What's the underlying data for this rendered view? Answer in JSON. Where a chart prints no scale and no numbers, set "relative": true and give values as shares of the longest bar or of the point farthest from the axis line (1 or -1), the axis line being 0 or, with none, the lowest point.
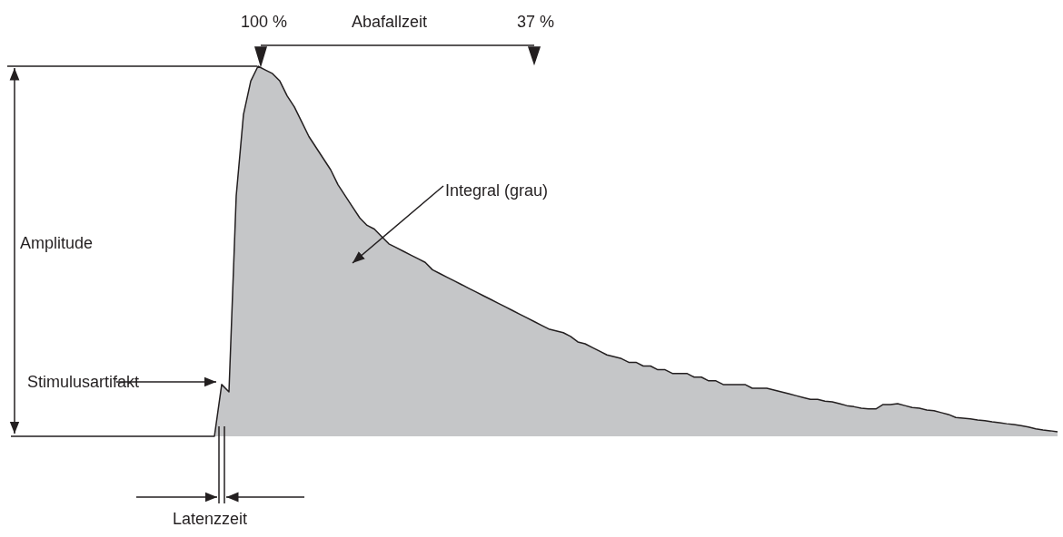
{
  "chart_data": {
    "type": "area",
    "relative": true,
    "annotations": [
      "100 %",
      "Abafallzeit",
      "37 %",
      "Amplitude",
      "Integral (grau)",
      "Stimulusartifakt",
      "Latenzzeit"
    ],
    "categories": [
      null,
      null,
      null,
      null,
      null,
      null,
      null,
      null,
      null,
      null,
      null,
      null,
      null,
      null,
      null,
      null,
      null,
      null,
      null,
      null,
      null,
      null,
      null,
      null,
      null,
      null,
      null,
      null,
      null,
      null,
      null,
      null,
      null,
      null,
      null,
      null,
      null,
      null,
      null,
      null,
      null,
      null,
      null,
      null,
      null,
      null,
      null,
      null,
      null,
      null,
      null,
      null,
      null,
      null,
      null,
      null,
      null,
      null,
      null,
      null,
      null,
      null,
      null,
      null,
      null,
      null,
      null,
      null,
      null,
      null,
      null,
      null,
      null,
      null,
      null,
      null,
      null,
      null,
      null,
      null,
      null,
      null,
      null,
      null,
      null,
      null,
      null,
      null,
      null,
      null,
      null,
      null,
      null,
      null,
      null,
      null,
      null,
      null,
      null,
      null,
      null,
      null,
      null,
      null,
      null,
      null,
      null,
      null,
      null,
      null,
      null,
      null,
      null,
      null,
      null,
      null,
      null,
      null,
      null,
      null,
      null,
      null,
      null,
      null,
      null,
      null,
      null,
      null,
      null,
      null,
      null,
      null,
      null,
      null,
      null,
      null,
      null,
      null,
      null,
      null,
      null,
      null,
      null,
      null,
      null
    ],
    "series": [
      {
        "color": "#c5c6c8",
        "values": [
          0,
          0,
          0,
          0,
          0,
          0,
          0,
          0,
          0,
          0,
          0,
          0,
          0,
          0,
          0,
          0,
          0,
          0,
          0,
          0,
          0,
          0,
          0,
          0,
          0,
          0,
          0,
          0,
          0,
          0.14,
          0.12,
          0.65,
          0.87,
          0.96,
          1.0,
          0.99,
          0.98,
          0.96,
          0.92,
          0.89,
          0.85,
          0.81,
          0.78,
          0.75,
          0.72,
          0.68,
          0.65,
          0.62,
          0.59,
          0.57,
          0.56,
          0.54,
          0.52,
          0.51,
          0.5,
          0.49,
          0.48,
          0.47,
          0.45,
          0.44,
          0.43,
          0.42,
          0.41,
          0.4,
          0.39,
          0.38,
          0.37,
          0.36,
          0.35,
          0.34,
          0.33,
          0.32,
          0.31,
          0.3,
          0.29,
          0.285,
          0.28,
          0.27,
          0.255,
          0.25,
          0.24,
          0.23,
          0.22,
          0.215,
          0.21,
          0.2,
          0.2,
          0.19,
          0.19,
          0.18,
          0.18,
          0.17,
          0.17,
          0.17,
          0.16,
          0.16,
          0.15,
          0.15,
          0.14,
          0.14,
          0.14,
          0.14,
          0.13,
          0.13,
          0.13,
          0.125,
          0.12,
          0.115,
          0.11,
          0.105,
          0.1,
          0.1,
          0.095,
          0.093,
          0.088,
          0.083,
          0.08,
          0.076,
          0.074,
          0.074,
          0.086,
          0.086,
          0.088,
          0.083,
          0.078,
          0.076,
          0.071,
          0.069,
          0.064,
          0.059,
          0.051,
          0.049,
          0.047,
          0.044,
          0.042,
          0.039,
          0.037,
          0.034,
          0.032,
          0.029,
          0.025,
          0.02,
          0.017,
          0.015,
          0.012
        ]
      }
    ]
  }
}
